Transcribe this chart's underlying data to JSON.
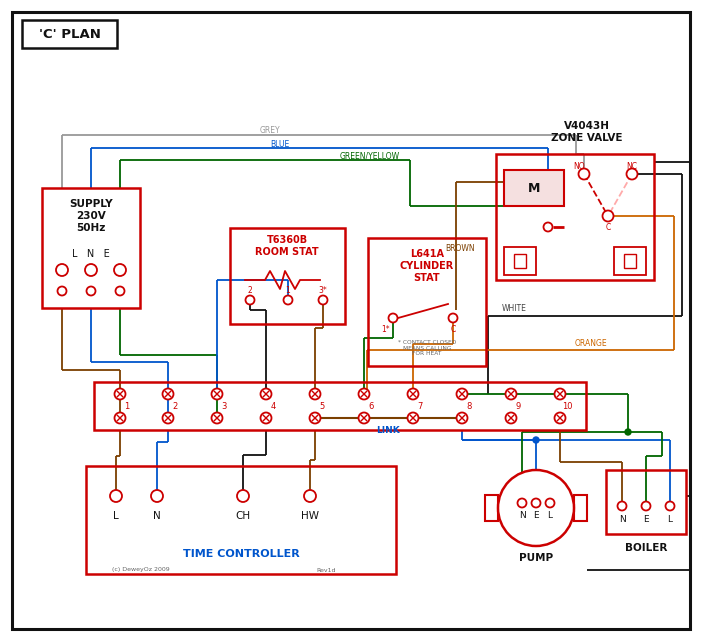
{
  "bg": "#ffffff",
  "red": "#cc0000",
  "blue": "#0055cc",
  "green": "#006600",
  "brown": "#7b3f00",
  "grey": "#999999",
  "orange": "#cc6600",
  "black": "#111111",
  "title": "'C' PLAN",
  "zone_valve": "V4043H\nZONE VALVE",
  "supply": "SUPPLY\n230V\n50Hz",
  "room_stat": "T6360B\nROOM STAT",
  "cyl_stat": "L641A\nCYLINDER\nSTAT",
  "time_ctrl": "TIME CONTROLLER",
  "pump": "PUMP",
  "boiler": "BOILER",
  "link": "LINK",
  "copyright": "(c) DeweyOz 2009",
  "rev": "Rev1d",
  "contact_note": "* CONTACT CLOSED\nMEANS CALLING\nFOR HEAT",
  "lbl_grey": "GREY",
  "lbl_blue": "BLUE",
  "lbl_gy": "GREEN/YELLOW",
  "lbl_brown": "BROWN",
  "lbl_white": "WHITE",
  "lbl_orange": "ORANGE"
}
